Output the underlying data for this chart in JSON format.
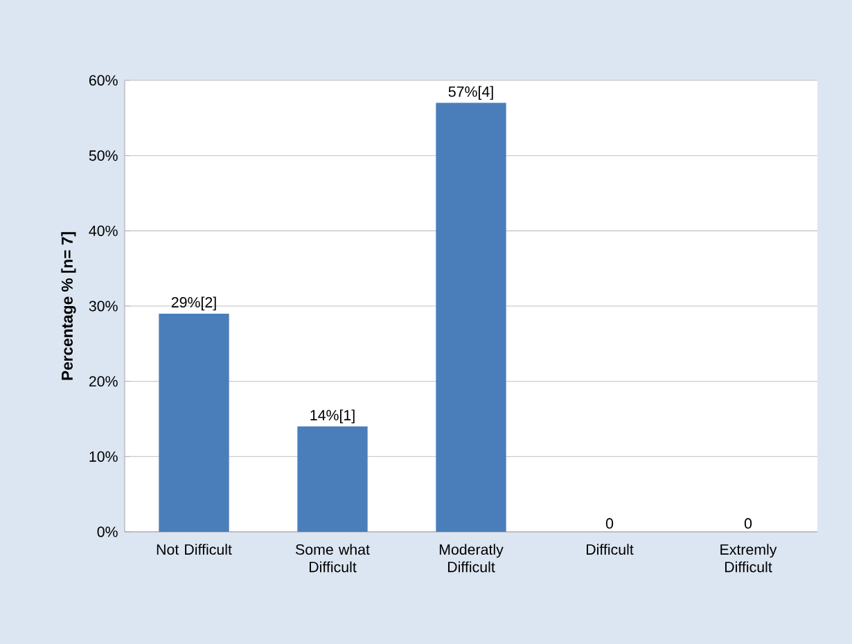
{
  "chart_data": {
    "type": "bar",
    "ylabel": "Percentage % [n= 7]",
    "categories": [
      "Not Difficult",
      "Some what Difficult",
      "Moderatly Difficult",
      "Difficult",
      "Extremly Difficult"
    ],
    "values": [
      29,
      14,
      57,
      0,
      0
    ],
    "value_labels": [
      "29%[2]",
      "14%[1]",
      "57%[4]",
      "0",
      "0"
    ],
    "color": "#4a7ebb",
    "ylim": [
      0,
      60
    ],
    "yticks": [
      {
        "value": 0,
        "label": "0%"
      },
      {
        "value": 10,
        "label": "10%"
      },
      {
        "value": 20,
        "label": "20%"
      },
      {
        "value": 30,
        "label": "30%"
      },
      {
        "value": 40,
        "label": "40%"
      },
      {
        "value": 50,
        "label": "50%"
      },
      {
        "value": 60,
        "label": "60%"
      }
    ],
    "grid": "y"
  }
}
